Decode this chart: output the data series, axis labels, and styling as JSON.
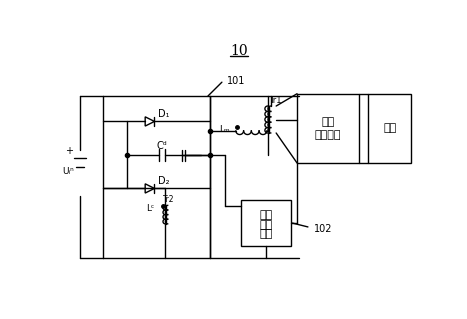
{
  "bg_color": "#ffffff",
  "line_color": "#000000",
  "figsize": [
    4.67,
    3.19
  ],
  "dpi": 100,
  "title": "10",
  "ref101": "101",
  "ref102": "102",
  "label_uin": "Uᵢⁿ",
  "label_d1": "D₁",
  "label_d2": "D₂",
  "label_lm": "Lₘ",
  "label_lc": "Lᶜ",
  "label_cd": "Cᵈ",
  "label_tr1": "Tr1",
  "label_tr2": "Tr2",
  "label_box1_line1": "整流",
  "label_box1_line2": "滤波电路",
  "label_box2": "负载",
  "label_box3_line1": "单向",
  "label_box3_line2": "开关",
  "label_box3_line3": "电路",
  "plus": "+",
  "minus": "−"
}
